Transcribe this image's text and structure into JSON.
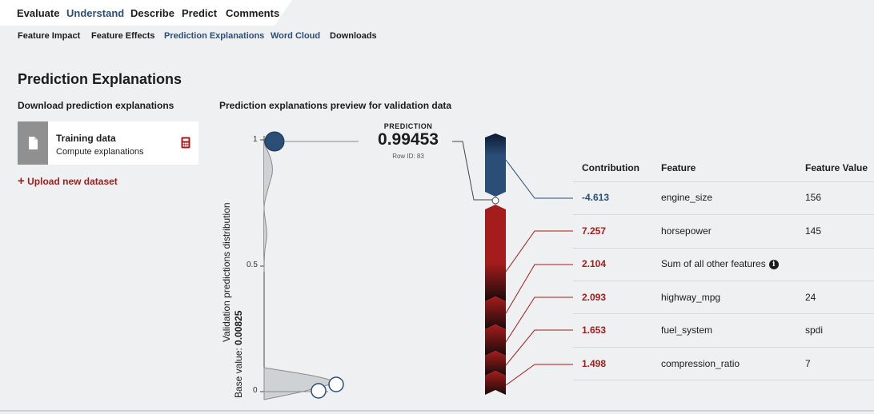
{
  "top_nav": [
    "Evaluate",
    "Understand",
    "Describe",
    "Predict",
    "Comments"
  ],
  "top_nav_active": "Understand",
  "sub_nav": [
    "Feature Impact",
    "Feature Effects",
    "Prediction Explanations",
    "Word Cloud",
    "Downloads"
  ],
  "sub_nav_active": "Prediction Explanations",
  "page_title": "Prediction Explanations",
  "download_section": {
    "heading": "Download prediction explanations",
    "card_title": "Training data",
    "card_subtitle": "Compute explanations",
    "upload_label": "Upload new dataset"
  },
  "preview": {
    "heading": "Prediction explanations preview for validation data",
    "prediction_label": "PREDICTION",
    "prediction_value": "0.99453",
    "row_id": "Row ID: 83",
    "y_axis_label": "Validation predictions distribution",
    "base_value_label": "Base value: ",
    "base_value": "0.00825",
    "y_ticks": [
      "1",
      "0.5",
      "0"
    ],
    "prediction_numeric": 0.99453,
    "base_numeric": 0.00825
  },
  "table": {
    "headers": {
      "contribution": "Contribution",
      "feature": "Feature",
      "value": "Feature Value"
    },
    "rows": [
      {
        "contribution": "-4.613",
        "feature": "engine_size",
        "value": "156",
        "sign": "negative"
      },
      {
        "contribution": "7.257",
        "feature": "horsepower",
        "value": "145",
        "sign": "positive"
      },
      {
        "contribution": "2.104",
        "feature": "Sum of all other features",
        "value": "",
        "sign": "positive",
        "info": true
      },
      {
        "contribution": "2.093",
        "feature": "highway_mpg",
        "value": "24",
        "sign": "positive"
      },
      {
        "contribution": "1.653",
        "feature": "fuel_system",
        "value": "spdi",
        "sign": "positive"
      },
      {
        "contribution": "1.498",
        "feature": "compression_ratio",
        "value": "7",
        "sign": "positive"
      }
    ]
  },
  "colors": {
    "positive": "#a51c1c",
    "negative": "#2b4e77",
    "accent": "#2b4e77"
  }
}
